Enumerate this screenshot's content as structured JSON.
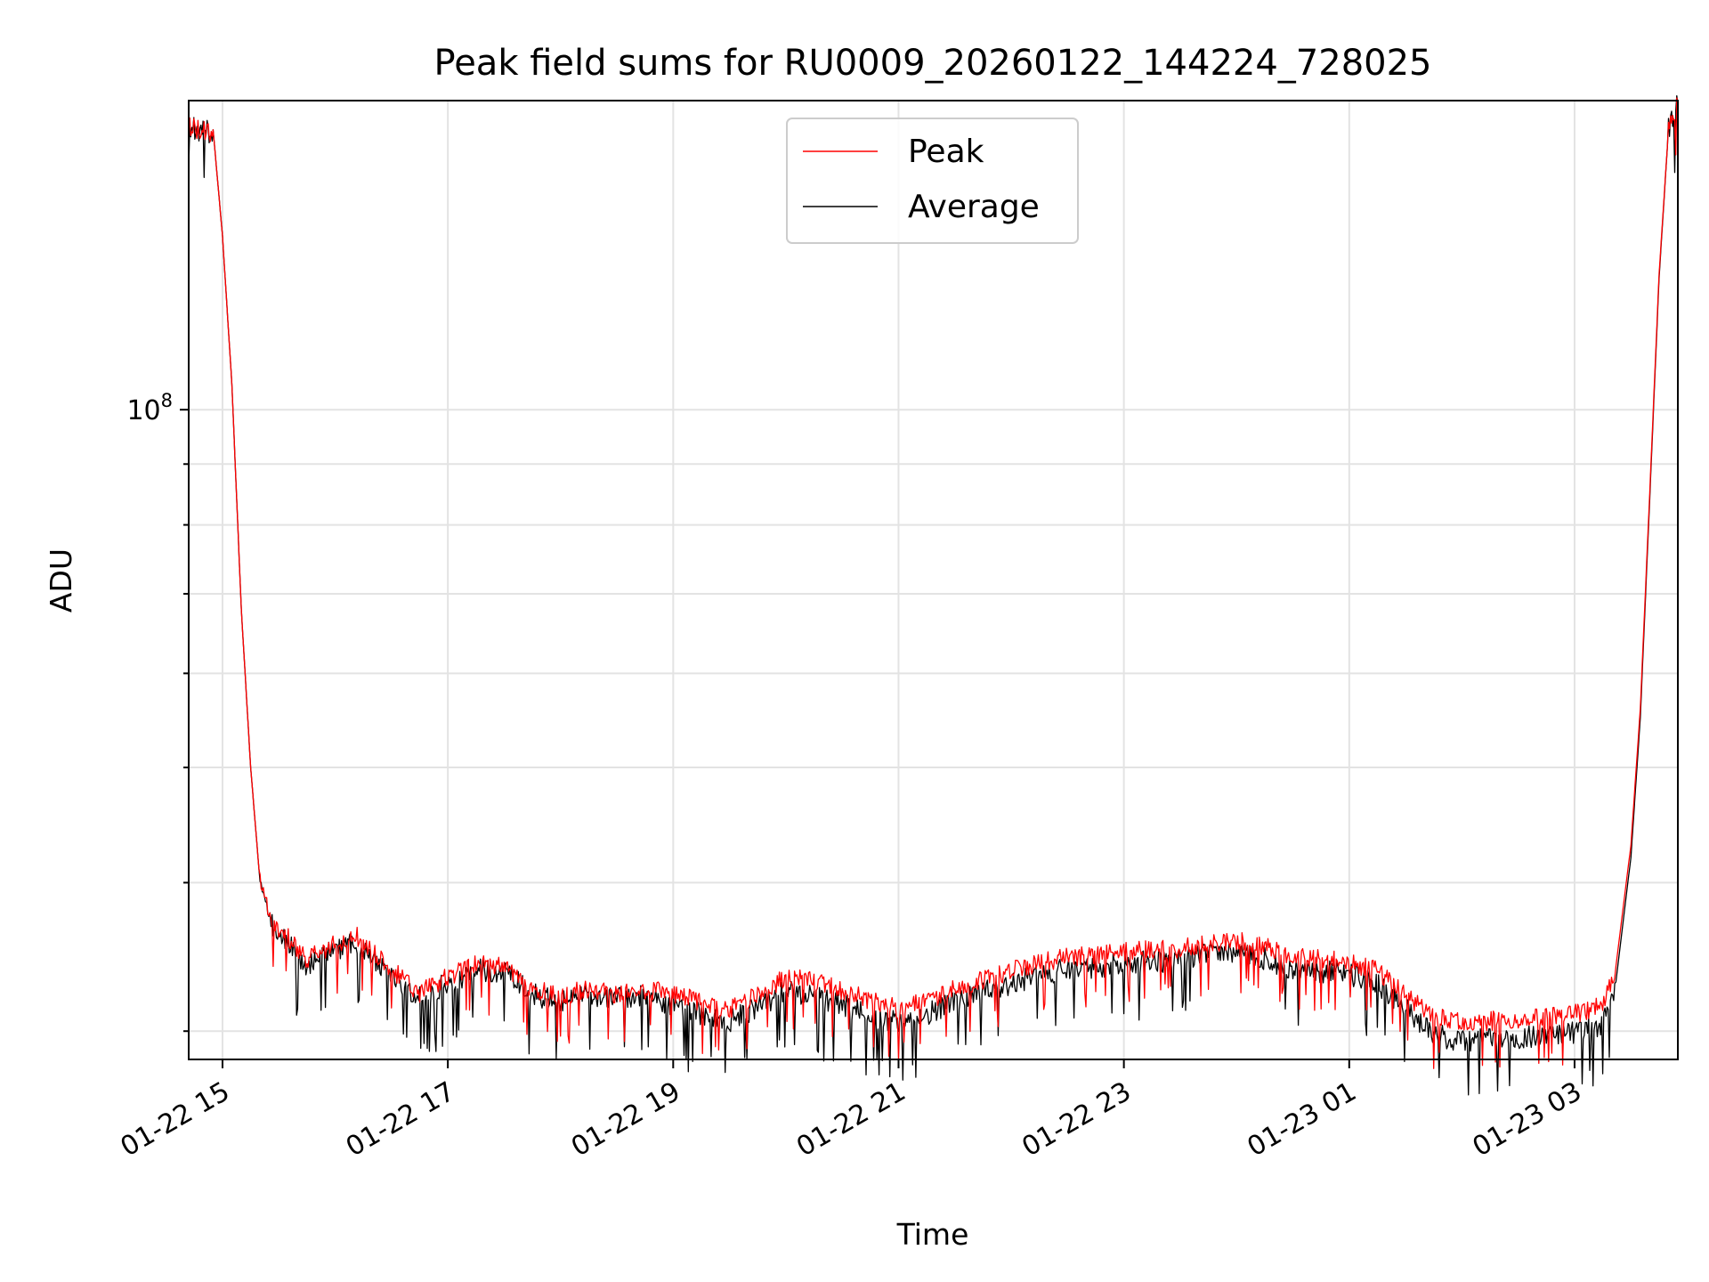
{
  "chart_data": {
    "type": "line",
    "title": "Peak field sums for RU0009_20260122_144224_728025",
    "xlabel": "Time",
    "ylabel": "ADU",
    "y_scale": "log",
    "x_range": [
      "2026-01-22 14:42",
      "2026-01-23 03:55"
    ],
    "ylim": [
      28400000,
      182000000
    ],
    "x_ticks": [
      "01-22 15",
      "01-22 17",
      "01-22 19",
      "01-22 21",
      "01-22 23",
      "01-23 01",
      "01-23 03"
    ],
    "y_tick_label": {
      "base": "10",
      "exp": "8"
    },
    "grid": true,
    "legend_position": "upper center",
    "series": [
      {
        "name": "Peak",
        "color": "#ff0000",
        "points": [
          [
            "2026-01-22 14:42",
            173000000
          ],
          [
            "2026-01-22 14:48",
            172000000
          ],
          [
            "2026-01-22 14:54",
            171000000
          ],
          [
            "2026-01-22 14:55",
            172000000
          ],
          [
            "2026-01-22 15:00",
            140000000
          ],
          [
            "2026-01-22 15:05",
            105000000
          ],
          [
            "2026-01-22 15:10",
            68000000
          ],
          [
            "2026-01-22 15:15",
            50000000
          ],
          [
            "2026-01-22 15:20",
            40000000
          ],
          [
            "2026-01-22 15:27",
            37000000
          ],
          [
            "2026-01-22 15:35",
            36000000
          ],
          [
            "2026-01-22 15:45",
            34500000
          ],
          [
            "2026-01-22 16:00",
            35500000
          ],
          [
            "2026-01-22 16:10",
            36200000
          ],
          [
            "2026-01-22 16:20",
            35000000
          ],
          [
            "2026-01-22 16:30",
            33800000
          ],
          [
            "2026-01-22 16:45",
            32300000
          ],
          [
            "2026-01-22 17:00",
            33300000
          ],
          [
            "2026-01-22 17:15",
            34200000
          ],
          [
            "2026-01-22 17:30",
            34100000
          ],
          [
            "2026-01-22 17:45",
            32600000
          ],
          [
            "2026-01-22 18:00",
            32100000
          ],
          [
            "2026-01-22 18:15",
            32600000
          ],
          [
            "2026-01-22 18:30",
            32200000
          ],
          [
            "2026-01-22 18:45",
            32500000
          ],
          [
            "2026-01-22 19:00",
            32300000
          ],
          [
            "2026-01-22 19:15",
            31700000
          ],
          [
            "2026-01-22 19:30",
            31300000
          ],
          [
            "2026-01-22 19:45",
            32200000
          ],
          [
            "2026-01-22 20:00",
            33300000
          ],
          [
            "2026-01-22 20:15",
            33000000
          ],
          [
            "2026-01-22 20:30",
            32500000
          ],
          [
            "2026-01-22 20:45",
            31800000
          ],
          [
            "2026-01-22 21:00",
            31300000
          ],
          [
            "2026-01-22 21:15",
            31800000
          ],
          [
            "2026-01-22 21:30",
            32600000
          ],
          [
            "2026-01-22 21:45",
            33100000
          ],
          [
            "2026-01-22 22:00",
            33700000
          ],
          [
            "2026-01-22 22:15",
            34300000
          ],
          [
            "2026-01-22 22:30",
            34600000
          ],
          [
            "2026-01-22 22:45",
            34800000
          ],
          [
            "2026-01-22 23:00",
            35000000
          ],
          [
            "2026-01-22 23:15",
            35100000
          ],
          [
            "2026-01-22 23:30",
            35200000
          ],
          [
            "2026-01-22 23:45",
            35500000
          ],
          [
            "2026-01-23 00:00",
            35700000
          ],
          [
            "2026-01-23 00:15",
            35300000
          ],
          [
            "2026-01-23 00:30",
            34600000
          ],
          [
            "2026-01-23 00:45",
            34500000
          ],
          [
            "2026-01-23 01:00",
            34300000
          ],
          [
            "2026-01-23 01:15",
            33700000
          ],
          [
            "2026-01-23 01:30",
            32200000
          ],
          [
            "2026-01-23 01:45",
            30800000
          ],
          [
            "2026-01-23 02:00",
            30500000
          ],
          [
            "2026-01-23 02:15",
            30600000
          ],
          [
            "2026-01-23 02:30",
            30700000
          ],
          [
            "2026-01-23 02:45",
            30800000
          ],
          [
            "2026-01-23 03:00",
            31000000
          ],
          [
            "2026-01-23 03:15",
            31500000
          ],
          [
            "2026-01-23 03:22",
            34000000
          ],
          [
            "2026-01-23 03:30",
            43000000
          ],
          [
            "2026-01-23 03:35",
            56000000
          ],
          [
            "2026-01-23 03:40",
            85000000
          ],
          [
            "2026-01-23 03:45",
            130000000
          ],
          [
            "2026-01-23 03:50",
            172000000
          ],
          [
            "2026-01-23 03:55",
            181000000
          ]
        ]
      },
      {
        "name": "Average",
        "color": "#000000",
        "points": [
          [
            "2026-01-22 14:42",
            173000000
          ],
          [
            "2026-01-22 14:48",
            172000000
          ],
          [
            "2026-01-22 14:54",
            171000000
          ],
          [
            "2026-01-22 14:55",
            172000000
          ],
          [
            "2026-01-22 15:00",
            140000000
          ],
          [
            "2026-01-22 15:05",
            105000000
          ],
          [
            "2026-01-22 15:10",
            68000000
          ],
          [
            "2026-01-22 15:15",
            50000000
          ],
          [
            "2026-01-22 15:20",
            40000000
          ],
          [
            "2026-01-22 15:27",
            36700000
          ],
          [
            "2026-01-22 15:35",
            35600000
          ],
          [
            "2026-01-22 15:45",
            34100000
          ],
          [
            "2026-01-22 16:00",
            35100000
          ],
          [
            "2026-01-22 16:10",
            35800000
          ],
          [
            "2026-01-22 16:20",
            34600000
          ],
          [
            "2026-01-22 16:30",
            33400000
          ],
          [
            "2026-01-22 16:45",
            32000000
          ],
          [
            "2026-01-22 17:00",
            32900000
          ],
          [
            "2026-01-22 17:15",
            33800000
          ],
          [
            "2026-01-22 17:30",
            33700000
          ],
          [
            "2026-01-22 17:45",
            32200000
          ],
          [
            "2026-01-22 18:00",
            31800000
          ],
          [
            "2026-01-22 18:15",
            32200000
          ],
          [
            "2026-01-22 18:30",
            31900000
          ],
          [
            "2026-01-22 18:45",
            32100000
          ],
          [
            "2026-01-22 19:00",
            31600000
          ],
          [
            "2026-01-22 19:15",
            31000000
          ],
          [
            "2026-01-22 19:30",
            30600000
          ],
          [
            "2026-01-22 19:45",
            31400000
          ],
          [
            "2026-01-22 20:00",
            32400000
          ],
          [
            "2026-01-22 20:15",
            32100000
          ],
          [
            "2026-01-22 20:30",
            31600000
          ],
          [
            "2026-01-22 20:45",
            30900000
          ],
          [
            "2026-01-22 21:00",
            30500000
          ],
          [
            "2026-01-22 21:15",
            31000000
          ],
          [
            "2026-01-22 21:30",
            31800000
          ],
          [
            "2026-01-22 21:45",
            32300000
          ],
          [
            "2026-01-22 22:00",
            32900000
          ],
          [
            "2026-01-22 22:15",
            33500000
          ],
          [
            "2026-01-22 22:30",
            33800000
          ],
          [
            "2026-01-22 22:45",
            34000000
          ],
          [
            "2026-01-22 23:00",
            34200000
          ],
          [
            "2026-01-22 23:15",
            34300000
          ],
          [
            "2026-01-22 23:30",
            34400000
          ],
          [
            "2026-01-22 23:45",
            34800000
          ],
          [
            "2026-01-23 00:00",
            35000000
          ],
          [
            "2026-01-23 00:15",
            34500000
          ],
          [
            "2026-01-23 00:30",
            33800000
          ],
          [
            "2026-01-23 00:45",
            33700000
          ],
          [
            "2026-01-23 01:00",
            33500000
          ],
          [
            "2026-01-23 01:15",
            32900000
          ],
          [
            "2026-01-23 01:30",
            31300000
          ],
          [
            "2026-01-23 01:45",
            29800000
          ],
          [
            "2026-01-23 02:00",
            29400000
          ],
          [
            "2026-01-23 02:15",
            29500000
          ],
          [
            "2026-01-23 02:30",
            29600000
          ],
          [
            "2026-01-23 02:45",
            29700000
          ],
          [
            "2026-01-23 03:00",
            29900000
          ],
          [
            "2026-01-23 03:15",
            30300000
          ],
          [
            "2026-01-23 03:22",
            33000000
          ],
          [
            "2026-01-23 03:30",
            42000000
          ],
          [
            "2026-01-23 03:35",
            55000000
          ],
          [
            "2026-01-23 03:40",
            84000000
          ],
          [
            "2026-01-23 03:45",
            129000000
          ],
          [
            "2026-01-23 03:50",
            172000000
          ],
          [
            "2026-01-23 03:55",
            181000000
          ]
        ]
      }
    ]
  }
}
